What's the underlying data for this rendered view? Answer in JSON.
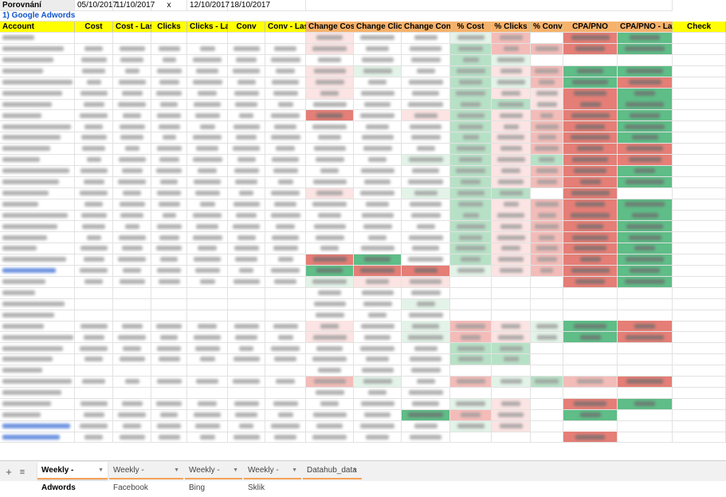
{
  "compare": {
    "label": "Porovnání",
    "range1_from": "05/10/2017",
    "range1_to": "11/10/2017",
    "mark": "x",
    "range2_from": "12/10/2017",
    "range2_to": "18/10/2017"
  },
  "section": {
    "title": "1) Google Adwords"
  },
  "columns": [
    "Account",
    "Cost",
    "Cost - Last",
    "Clicks",
    "Clicks - Last",
    "Conv",
    "Conv - Last",
    "Change Cost",
    "Change Clicks",
    "Change Conv",
    "% Cost",
    "% Clicks",
    "% Conv",
    "CPA/PNO",
    "CPA/PNO - Last",
    "Check"
  ],
  "colors": {
    "header_yellow": "#ffff00",
    "header_orange": "#f6b26b",
    "positive": "#5fbd87",
    "negative": "#e57e76",
    "link_blue": "#1155cc",
    "tab_underline": "#f4a259"
  },
  "rows": [
    {
      "a": "w",
      "c": [
        0,
        0,
        0,
        0,
        0,
        0,
        0,
        "r1",
        "",
        "",
        "g1",
        "r2",
        "",
        "r3",
        "g3",
        ""
      ]
    },
    {
      "a": "w",
      "c": [
        1,
        1,
        1,
        1,
        1,
        1,
        1,
        "r1",
        "",
        "",
        "g2",
        "r2",
        "r2",
        "r3",
        "g3",
        ""
      ]
    },
    {
      "a": "w",
      "c": [
        1,
        1,
        1,
        1,
        1,
        1,
        1,
        "",
        "",
        "",
        "g2",
        "g1",
        "",
        "",
        "",
        ""
      ]
    },
    {
      "a": "w",
      "c": [
        1,
        1,
        1,
        1,
        1,
        1,
        1,
        "r1",
        "g1",
        "",
        "g2",
        "r1",
        "r2",
        "g3",
        "g3",
        ""
      ]
    },
    {
      "a": "w",
      "c": [
        1,
        1,
        1,
        1,
        1,
        1,
        1,
        "r1",
        "",
        "",
        "g2",
        "g1",
        "r2",
        "g3",
        "r3",
        ""
      ]
    },
    {
      "a": "w",
      "c": [
        1,
        1,
        1,
        1,
        1,
        1,
        1,
        "r1",
        "",
        "",
        "g2",
        "r1",
        "r1",
        "r3",
        "g3",
        ""
      ]
    },
    {
      "a": "w",
      "c": [
        1,
        1,
        1,
        1,
        1,
        1,
        1,
        "",
        "",
        "",
        "g2",
        "g2",
        "r1",
        "r3",
        "g3",
        ""
      ]
    },
    {
      "a": "w",
      "c": [
        1,
        1,
        1,
        1,
        1,
        1,
        1,
        "r3",
        "",
        "r1",
        "g2",
        "r1",
        "r2",
        "r3",
        "g3",
        ""
      ]
    },
    {
      "a": "w",
      "c": [
        1,
        1,
        1,
        1,
        1,
        1,
        1,
        "",
        "",
        "",
        "g2",
        "r1",
        "r2",
        "r3",
        "g3",
        ""
      ]
    },
    {
      "a": "w",
      "c": [
        1,
        1,
        1,
        1,
        1,
        1,
        1,
        "",
        "",
        "",
        "g2",
        "r1",
        "r2",
        "r3",
        "g3",
        ""
      ]
    },
    {
      "a": "w",
      "c": [
        1,
        1,
        1,
        1,
        1,
        1,
        1,
        "",
        "",
        "",
        "g2",
        "r1",
        "r2",
        "r3",
        "r3",
        ""
      ]
    },
    {
      "a": "w",
      "c": [
        1,
        1,
        1,
        1,
        1,
        1,
        1,
        "",
        "",
        "g1",
        "g2",
        "r1",
        "g2",
        "r3",
        "r3",
        ""
      ]
    },
    {
      "a": "w",
      "c": [
        1,
        1,
        1,
        1,
        1,
        1,
        1,
        "",
        "",
        "",
        "g2",
        "r1",
        "r2",
        "r3",
        "g3",
        ""
      ]
    },
    {
      "a": "w",
      "c": [
        1,
        1,
        1,
        1,
        1,
        1,
        1,
        "",
        "",
        "",
        "g2",
        "r1",
        "r2",
        "r3",
        "g3",
        ""
      ]
    },
    {
      "a": "w",
      "c": [
        1,
        1,
        1,
        1,
        1,
        1,
        1,
        "r1",
        "",
        "g1",
        "g2",
        "g2",
        "",
        "r3",
        "",
        ""
      ]
    },
    {
      "a": "w",
      "c": [
        1,
        1,
        1,
        1,
        1,
        1,
        1,
        "",
        "",
        "",
        "g2",
        "r1",
        "r2",
        "r3",
        "g3",
        ""
      ]
    },
    {
      "a": "w",
      "c": [
        1,
        1,
        1,
        1,
        1,
        1,
        1,
        "",
        "",
        "",
        "g2",
        "r1",
        "r2",
        "r3",
        "g3",
        ""
      ]
    },
    {
      "a": "w",
      "c": [
        1,
        1,
        1,
        1,
        1,
        1,
        1,
        "",
        "",
        "",
        "g2",
        "r1",
        "r2",
        "r3",
        "g3",
        ""
      ]
    },
    {
      "a": "w",
      "c": [
        1,
        1,
        1,
        1,
        1,
        1,
        1,
        "",
        "",
        "",
        "g2",
        "r1",
        "r2",
        "r3",
        "g3",
        ""
      ]
    },
    {
      "a": "w",
      "c": [
        1,
        1,
        1,
        1,
        1,
        1,
        1,
        "",
        "",
        "",
        "g2",
        "r1",
        "r2",
        "r3",
        "g3",
        ""
      ]
    },
    {
      "a": "w",
      "c": [
        1,
        1,
        1,
        1,
        1,
        1,
        1,
        "r3",
        "g3",
        "",
        "g2",
        "r1",
        "r2",
        "r3",
        "g3",
        ""
      ]
    },
    {
      "a": "b",
      "c": [
        1,
        1,
        1,
        1,
        1,
        1,
        1,
        "g3",
        "r3",
        "r3",
        "g1",
        "r1",
        "r2",
        "r3",
        "g3",
        ""
      ]
    },
    {
      "a": "w",
      "c": [
        1,
        1,
        1,
        1,
        1,
        1,
        1,
        "g1",
        "r1",
        "r1",
        "",
        "",
        "",
        "r3",
        "g3",
        ""
      ]
    },
    {
      "a": "w",
      "c": [
        0,
        0,
        0,
        0,
        0,
        0,
        0,
        "",
        "",
        "",
        "",
        "",
        "",
        "",
        "",
        ""
      ]
    },
    {
      "a": "w",
      "c": [
        0,
        0,
        0,
        0,
        0,
        0,
        0,
        "",
        "",
        "g1",
        "",
        "",
        "",
        "",
        "",
        ""
      ]
    },
    {
      "a": "w",
      "c": [
        0,
        0,
        0,
        0,
        0,
        0,
        0,
        "",
        "",
        "",
        "",
        "",
        "",
        "",
        "",
        ""
      ]
    },
    {
      "a": "w",
      "c": [
        1,
        1,
        1,
        1,
        1,
        1,
        1,
        "r1",
        "",
        "g1",
        "r2",
        "r1",
        "g1",
        "g3",
        "r3",
        ""
      ]
    },
    {
      "a": "w",
      "c": [
        1,
        1,
        1,
        1,
        1,
        1,
        1,
        "r1",
        "",
        "g1",
        "r2",
        "r1",
        "g1",
        "g3",
        "r3",
        ""
      ]
    },
    {
      "a": "w",
      "c": [
        1,
        1,
        1,
        1,
        1,
        1,
        1,
        "",
        "",
        "",
        "g2",
        "g2",
        "",
        "",
        "",
        ""
      ]
    },
    {
      "a": "w",
      "c": [
        1,
        1,
        1,
        1,
        1,
        1,
        1,
        "",
        "",
        "",
        "g2",
        "g2",
        "",
        "",
        "",
        ""
      ]
    },
    {
      "a": "w",
      "c": [
        0,
        0,
        0,
        0,
        0,
        0,
        0,
        "",
        "",
        "",
        "",
        "",
        "",
        "",
        "",
        ""
      ]
    },
    {
      "a": "w",
      "c": [
        1,
        1,
        1,
        1,
        1,
        1,
        1,
        "r2",
        "g1",
        "",
        "r2",
        "g1",
        "g2",
        "r2",
        "r3",
        ""
      ]
    },
    {
      "a": "w",
      "c": [
        0,
        0,
        0,
        0,
        0,
        0,
        0,
        "",
        "",
        "",
        "",
        "",
        "",
        "",
        "",
        ""
      ]
    },
    {
      "a": "w",
      "c": [
        1,
        1,
        1,
        1,
        1,
        1,
        1,
        "",
        "",
        "",
        "g1",
        "r1",
        "",
        "r3",
        "g3",
        ""
      ]
    },
    {
      "a": "w",
      "c": [
        1,
        1,
        1,
        1,
        1,
        1,
        1,
        "",
        "",
        "g3",
        "r2",
        "r1",
        "",
        "g3",
        "",
        ""
      ]
    },
    {
      "a": "b",
      "c": [
        1,
        1,
        1,
        1,
        1,
        1,
        1,
        "",
        "",
        "",
        "g1",
        "r1",
        "",
        "",
        "",
        ""
      ]
    },
    {
      "a": "b",
      "c": [
        1,
        1,
        1,
        1,
        1,
        1,
        1,
        "",
        "",
        "",
        "",
        "",
        "",
        "r3",
        "",
        ""
      ]
    }
  ],
  "tabs": [
    {
      "label": "Weekly - Adwords",
      "active": true
    },
    {
      "label": "Weekly - Facebook",
      "active": false
    },
    {
      "label": "Weekly - Bing",
      "active": false
    },
    {
      "label": "Weekly - Sklik",
      "active": false
    },
    {
      "label": "Datahub_data",
      "active": false
    }
  ]
}
